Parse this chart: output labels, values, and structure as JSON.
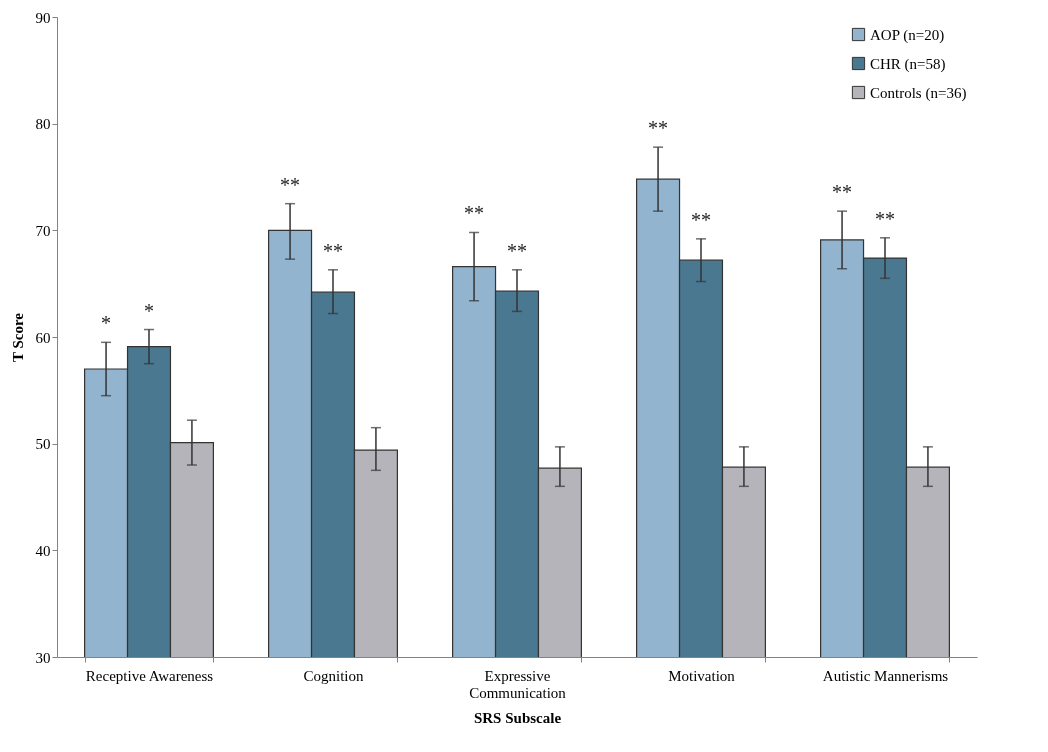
{
  "chart_data": {
    "type": "bar",
    "xlabel": "SRS Subscale",
    "ylabel": "T Score",
    "categories": [
      "Receptive Awareness",
      "Cognition",
      "Expressive Communication",
      "Motivation",
      "Autistic Mannerisms"
    ],
    "series": [
      {
        "name": "AOP (n=20)",
        "color": "#93b4cf",
        "values": [
          57.0,
          70.0,
          66.6,
          74.8,
          69.1
        ],
        "errors": [
          [
            54.5,
            59.5
          ],
          [
            67.3,
            72.5
          ],
          [
            63.4,
            69.8
          ],
          [
            71.8,
            77.8
          ],
          [
            66.4,
            71.8
          ]
        ],
        "value_labels": [
          "*",
          "**",
          "**",
          "**",
          "**"
        ]
      },
      {
        "name": "CHR (n=58)",
        "color": "#4a7891",
        "values": [
          59.1,
          64.2,
          64.3,
          67.2,
          67.4
        ],
        "errors": [
          [
            57.5,
            60.7
          ],
          [
            62.2,
            66.3
          ],
          [
            62.4,
            66.3
          ],
          [
            65.2,
            69.2
          ],
          [
            65.5,
            69.3
          ]
        ],
        "value_labels": [
          "*",
          "**",
          "**",
          "**",
          "**"
        ]
      },
      {
        "name": "Controls (n=36)",
        "color": "#b4b4ba",
        "values": [
          50.1,
          49.4,
          47.7,
          47.8,
          47.8
        ],
        "errors": [
          [
            48.0,
            52.2
          ],
          [
            47.5,
            51.5
          ],
          [
            46.0,
            49.7
          ],
          [
            46.0,
            49.7
          ],
          [
            46.0,
            49.7
          ]
        ]
      }
    ],
    "ylim": [
      30,
      90
    ],
    "yticks": [
      30,
      40,
      50,
      60,
      70,
      80,
      90
    ],
    "grid": false,
    "legend": "top right"
  }
}
